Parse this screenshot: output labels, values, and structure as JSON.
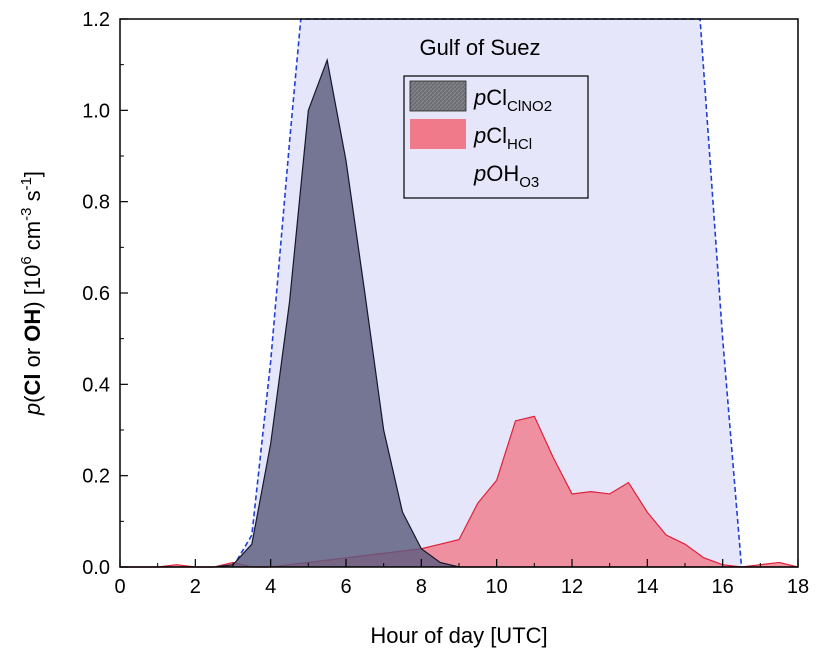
{
  "chart_data": {
    "type": "area",
    "annotation": "Gulf of Suez",
    "xlabel": "Hour of day [UTC]",
    "ylabel": {
      "prefix": "p",
      "open": "(",
      "cl": "Cl",
      "or": " or ",
      "oh": "OH",
      "close": ") [10",
      "exp1": "6",
      "unit1": " cm",
      "exp2": "-3",
      "unit2": " s",
      "exp3": "-1",
      "end": "]"
    },
    "xlim": [
      0,
      18
    ],
    "ylim": [
      0,
      1.2
    ],
    "xticks": [
      "0",
      "2",
      "4",
      "6",
      "8",
      "10",
      "12",
      "14",
      "16",
      "18"
    ],
    "yticks": [
      "0.0",
      "0.2",
      "0.4",
      "0.6",
      "0.8",
      "1.0",
      "1.2"
    ],
    "grid": false,
    "legend_placement": "top-center",
    "series": [
      {
        "name": "pOH_O3",
        "legend_main": "OH",
        "legend_prefix": "p",
        "legend_sub": "O3",
        "fill": "#e6e6fa",
        "stroke": "#1f3fd6",
        "dashed": true,
        "x": [
          3.0,
          3.5,
          4.0,
          4.5,
          4.8,
          15.4,
          16.0,
          16.5
        ],
        "y": [
          0.0,
          0.07,
          0.45,
          0.93,
          1.2,
          1.2,
          0.5,
          0.0
        ]
      },
      {
        "name": "pCl_HCl",
        "legend_main": "Cl",
        "legend_prefix": "p",
        "legend_sub": "HCl",
        "fill": "#f07a8a",
        "fill_opacity": 0.8,
        "stroke": "#e0203a",
        "dashed": false,
        "x": [
          0,
          0.5,
          1.0,
          1.5,
          2.0,
          2.5,
          3.0,
          3.5,
          4.0,
          5.0,
          6.0,
          7.0,
          8.0,
          8.5,
          9.0,
          9.5,
          10.0,
          10.5,
          11.0,
          11.5,
          12.0,
          12.5,
          13.0,
          13.5,
          14.0,
          14.5,
          15.0,
          15.5,
          16.0,
          16.5,
          17.0,
          17.5,
          18.0
        ],
        "y": [
          0.0,
          0.0,
          0.0,
          0.005,
          0.0,
          0.0,
          0.01,
          0.0,
          0.0,
          0.01,
          0.02,
          0.03,
          0.04,
          0.05,
          0.06,
          0.14,
          0.19,
          0.32,
          0.33,
          0.24,
          0.16,
          0.165,
          0.16,
          0.185,
          0.12,
          0.07,
          0.05,
          0.02,
          0.005,
          0.0,
          0.005,
          0.01,
          0.0
        ]
      },
      {
        "name": "pCl_ClNO2",
        "legend_main": "Cl",
        "legend_prefix": "p",
        "legend_sub": "ClNO2",
        "fill": "#5b5c7e",
        "fill_opacity": 0.82,
        "stroke": "#15172a",
        "dashed": false,
        "x": [
          0,
          2.5,
          3.0,
          3.5,
          4.0,
          4.5,
          5.0,
          5.5,
          6.0,
          6.5,
          7.0,
          7.5,
          8.0,
          8.5,
          9.0,
          18.0
        ],
        "y": [
          0.0,
          0.0,
          0.005,
          0.05,
          0.27,
          0.58,
          1.0,
          1.11,
          0.89,
          0.6,
          0.3,
          0.12,
          0.04,
          0.01,
          0.0,
          0.0
        ]
      }
    ],
    "legend_order": [
      2,
      1,
      0
    ]
  }
}
